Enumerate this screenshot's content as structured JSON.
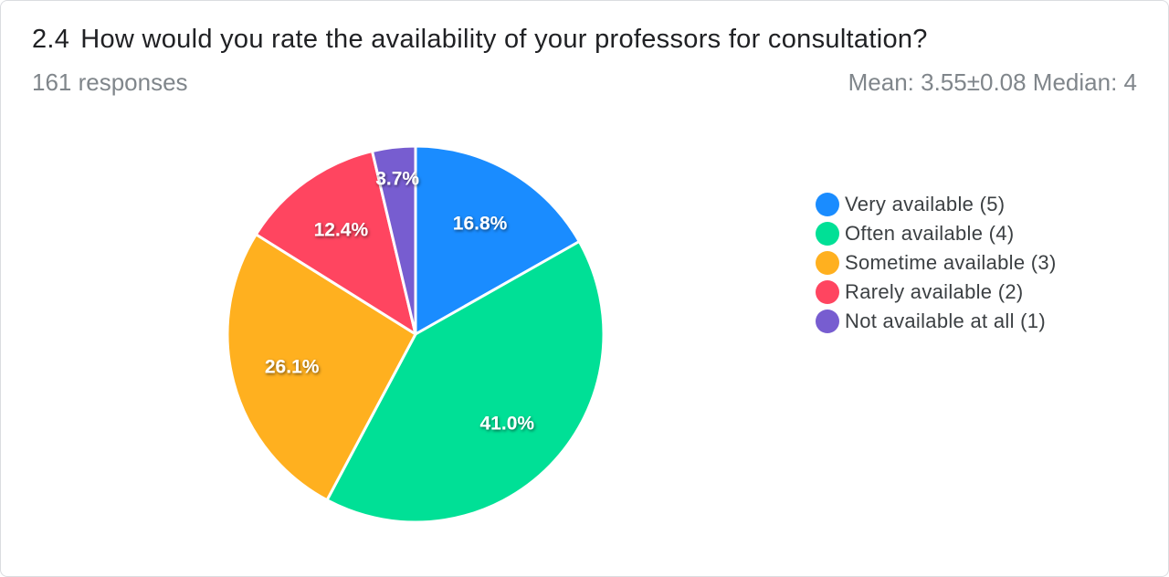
{
  "question": {
    "number": "2.4",
    "text": "How would you rate the availability of your professors for consultation?"
  },
  "responses_text": "161 responses",
  "stats_text": "Mean: 3.55±0.08 Median: 4",
  "chart_data": {
    "type": "pie",
    "title": "How would you rate the availability of your professors for consultation?",
    "categories": [
      "Very available (5)",
      "Often available (4)",
      "Sometime available (3)",
      "Rarely available (2)",
      "Not available at all (1)"
    ],
    "values": [
      16.8,
      41.0,
      26.1,
      12.4,
      3.7
    ],
    "labels": [
      "16.8%",
      "41.0%",
      "26.1%",
      "12.4%",
      "3.7%"
    ],
    "colors": [
      "#1a8cff",
      "#00e096",
      "#ffb01f",
      "#ff4560",
      "#775dd0"
    ],
    "legend_position": "right",
    "start": "top",
    "direction": "clockwise"
  }
}
